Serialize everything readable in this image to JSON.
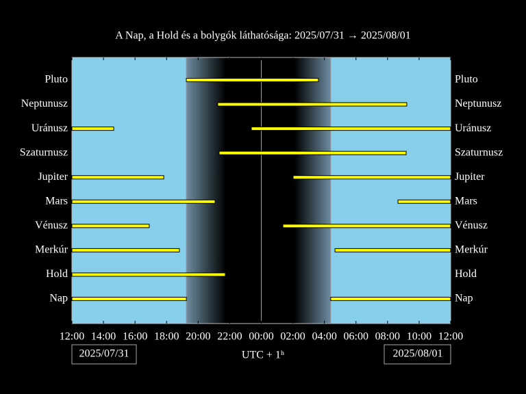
{
  "chart_data": {
    "type": "timeline",
    "title": "A Nap, a Hold és a bolygók láthatósága: 2025/07/31 → 2025/08/01",
    "xlabel": "UTC + 1ʰ",
    "start_date": "2025/07/31",
    "end_date": "2025/08/01",
    "xlim": [
      12,
      36
    ],
    "xticks": [
      {
        "value": 12,
        "label": "12:00"
      },
      {
        "value": 14,
        "label": "14:00"
      },
      {
        "value": 16,
        "label": "16:00"
      },
      {
        "value": 18,
        "label": "18:00"
      },
      {
        "value": 20,
        "label": "20:00"
      },
      {
        "value": 22,
        "label": "22:00"
      },
      {
        "value": 24,
        "label": "00:00"
      },
      {
        "value": 26,
        "label": "02:00"
      },
      {
        "value": 28,
        "label": "04:00"
      },
      {
        "value": 30,
        "label": "06:00"
      },
      {
        "value": 32,
        "label": "08:00"
      },
      {
        "value": 34,
        "label": "10:00"
      },
      {
        "value": 36,
        "label": "12:00"
      }
    ],
    "sunset": 19.25,
    "dusk_end": 21.75,
    "dawn_start": 26.1,
    "sunrise": 28.4,
    "midnight": 24,
    "day_color": "#87ceeb",
    "bar_color": "#ffff00",
    "series": [
      {
        "name": "Pluto",
        "intervals": [
          [
            19.25,
            27.62
          ]
        ]
      },
      {
        "name": "Neptunusz",
        "intervals": [
          [
            21.24,
            33.22
          ]
        ]
      },
      {
        "name": "Uránusz",
        "intervals": [
          [
            12,
            14.65
          ],
          [
            23.37,
            36
          ]
        ]
      },
      {
        "name": "Szaturnusz",
        "intervals": [
          [
            21.33,
            33.18
          ]
        ]
      },
      {
        "name": "Jupiter",
        "intervals": [
          [
            12,
            17.82
          ],
          [
            26.02,
            36
          ]
        ]
      },
      {
        "name": "Mars",
        "intervals": [
          [
            12,
            21.07
          ],
          [
            32.66,
            36
          ]
        ]
      },
      {
        "name": "Vénusz",
        "intervals": [
          [
            12,
            16.9
          ],
          [
            25.37,
            36
          ]
        ]
      },
      {
        "name": "Merkúr",
        "intervals": [
          [
            12,
            18.81
          ],
          [
            28.67,
            36
          ]
        ]
      },
      {
        "name": "Hold",
        "intervals": [
          [
            12,
            21.72
          ]
        ]
      },
      {
        "name": "Nap",
        "intervals": [
          [
            12,
            19.25
          ],
          [
            28.4,
            36
          ]
        ]
      }
    ]
  }
}
